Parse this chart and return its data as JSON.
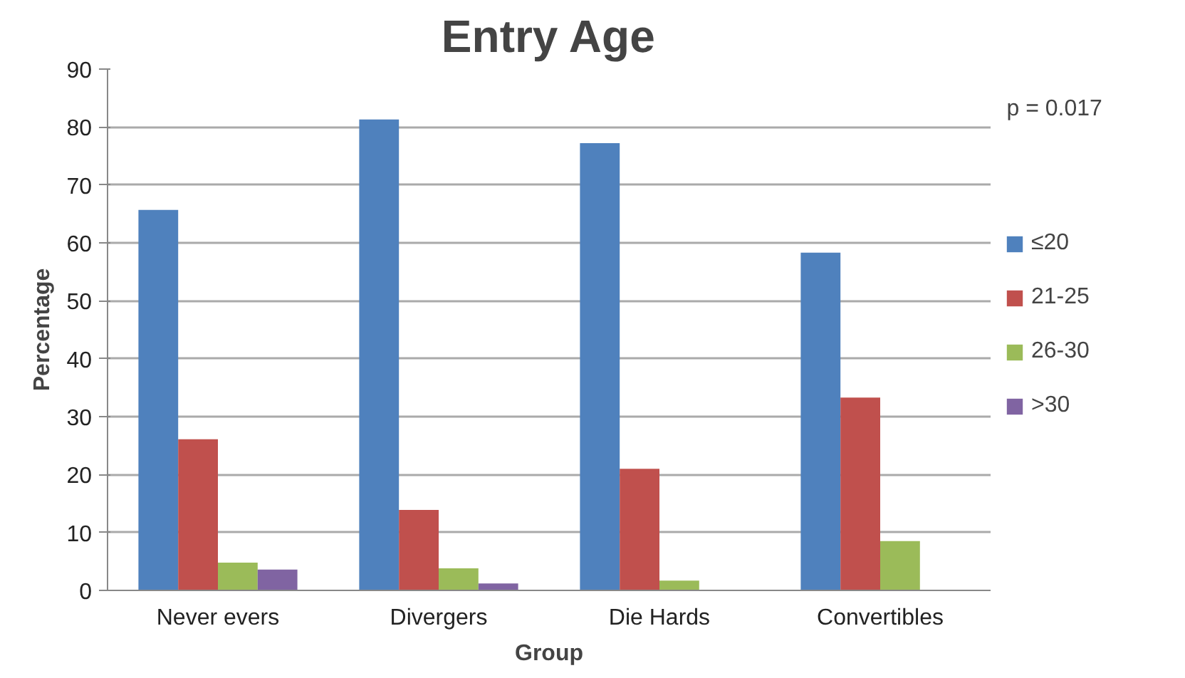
{
  "chart_data": {
    "type": "bar",
    "title": "Entry Age",
    "xlabel": "Group",
    "ylabel": "Percentage",
    "categories": [
      "Never evers",
      "Divergers",
      "Die Hards",
      "Convertibles"
    ],
    "series": [
      {
        "name": "≤20",
        "color": "#4f81bd",
        "values": [
          65.7,
          81.3,
          77.2,
          58.3
        ]
      },
      {
        "name": "21-25",
        "color": "#c0504d",
        "values": [
          26.1,
          13.9,
          21.0,
          33.3
        ]
      },
      {
        "name": "26-30",
        "color": "#9bbb59",
        "values": [
          4.8,
          3.8,
          1.7,
          8.5
        ]
      },
      {
        "name": ">30",
        "color": "#8064a2",
        "values": [
          3.6,
          1.2,
          0,
          0
        ]
      }
    ],
    "ylim": [
      0,
      90
    ],
    "yticks": [
      0,
      10,
      20,
      30,
      40,
      50,
      60,
      70,
      80,
      90
    ],
    "grid": "y",
    "legend": "right",
    "annotations": [
      "p = 0.017"
    ]
  }
}
